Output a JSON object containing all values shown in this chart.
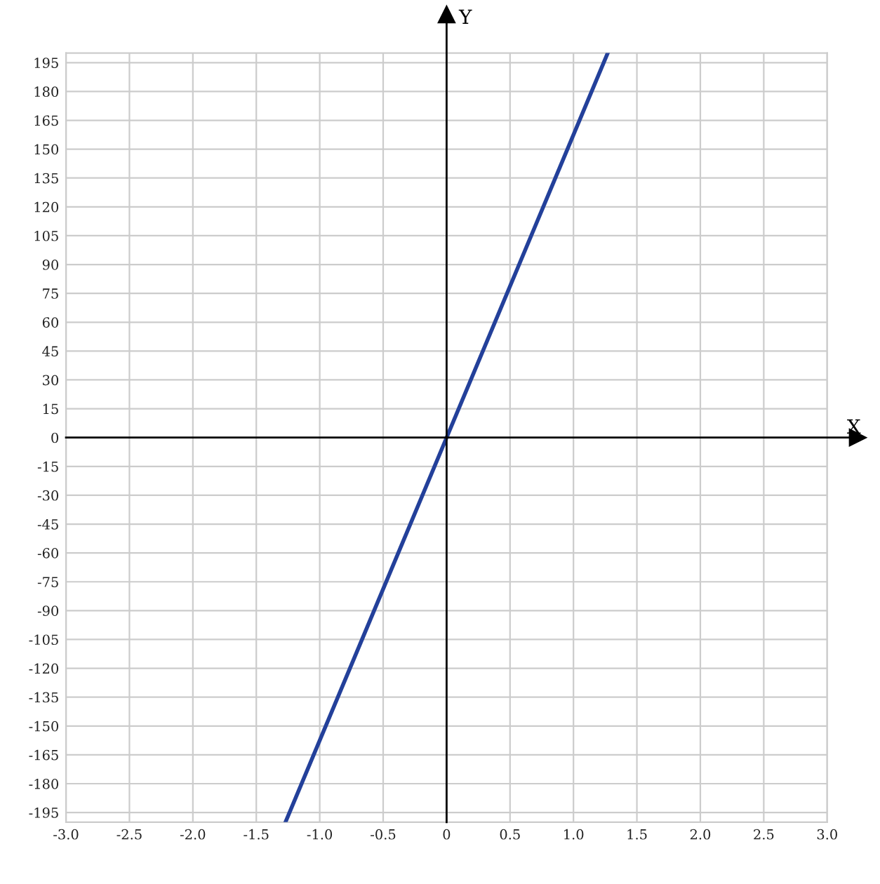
{
  "chart_data": {
    "type": "line",
    "xlabel": "X",
    "ylabel": "Y",
    "x": [
      -1.27,
      0,
      1.27
    ],
    "series": [
      {
        "color": "#23409a",
        "values": [
          -200,
          0,
          200
        ]
      }
    ],
    "xlim": [
      -3.0,
      3.0
    ],
    "ylim": [
      -200,
      200
    ],
    "xticks": [
      {
        "value": -3.0,
        "label": "-3.0"
      },
      {
        "value": -2.5,
        "label": "-2.5"
      },
      {
        "value": -2.0,
        "label": "-2.0"
      },
      {
        "value": -1.5,
        "label": "-1.5"
      },
      {
        "value": -1.0,
        "label": "-1.0"
      },
      {
        "value": -0.5,
        "label": "-0.5"
      },
      0,
      0.5,
      {
        "value": 1.0,
        "label": "1.0"
      },
      1.5,
      {
        "value": 2.0,
        "label": "2.0"
      },
      2.5,
      {
        "value": 3.0,
        "label": "3.0"
      }
    ],
    "yticks": [
      -195,
      -180,
      -165,
      -150,
      -135,
      -120,
      -105,
      -90,
      -75,
      -60,
      -45,
      -30,
      -15,
      0,
      15,
      30,
      45,
      60,
      75,
      90,
      105,
      120,
      135,
      150,
      165,
      180,
      195
    ],
    "grid": true,
    "marker": "none",
    "line_style": "solid",
    "legend": false
  }
}
